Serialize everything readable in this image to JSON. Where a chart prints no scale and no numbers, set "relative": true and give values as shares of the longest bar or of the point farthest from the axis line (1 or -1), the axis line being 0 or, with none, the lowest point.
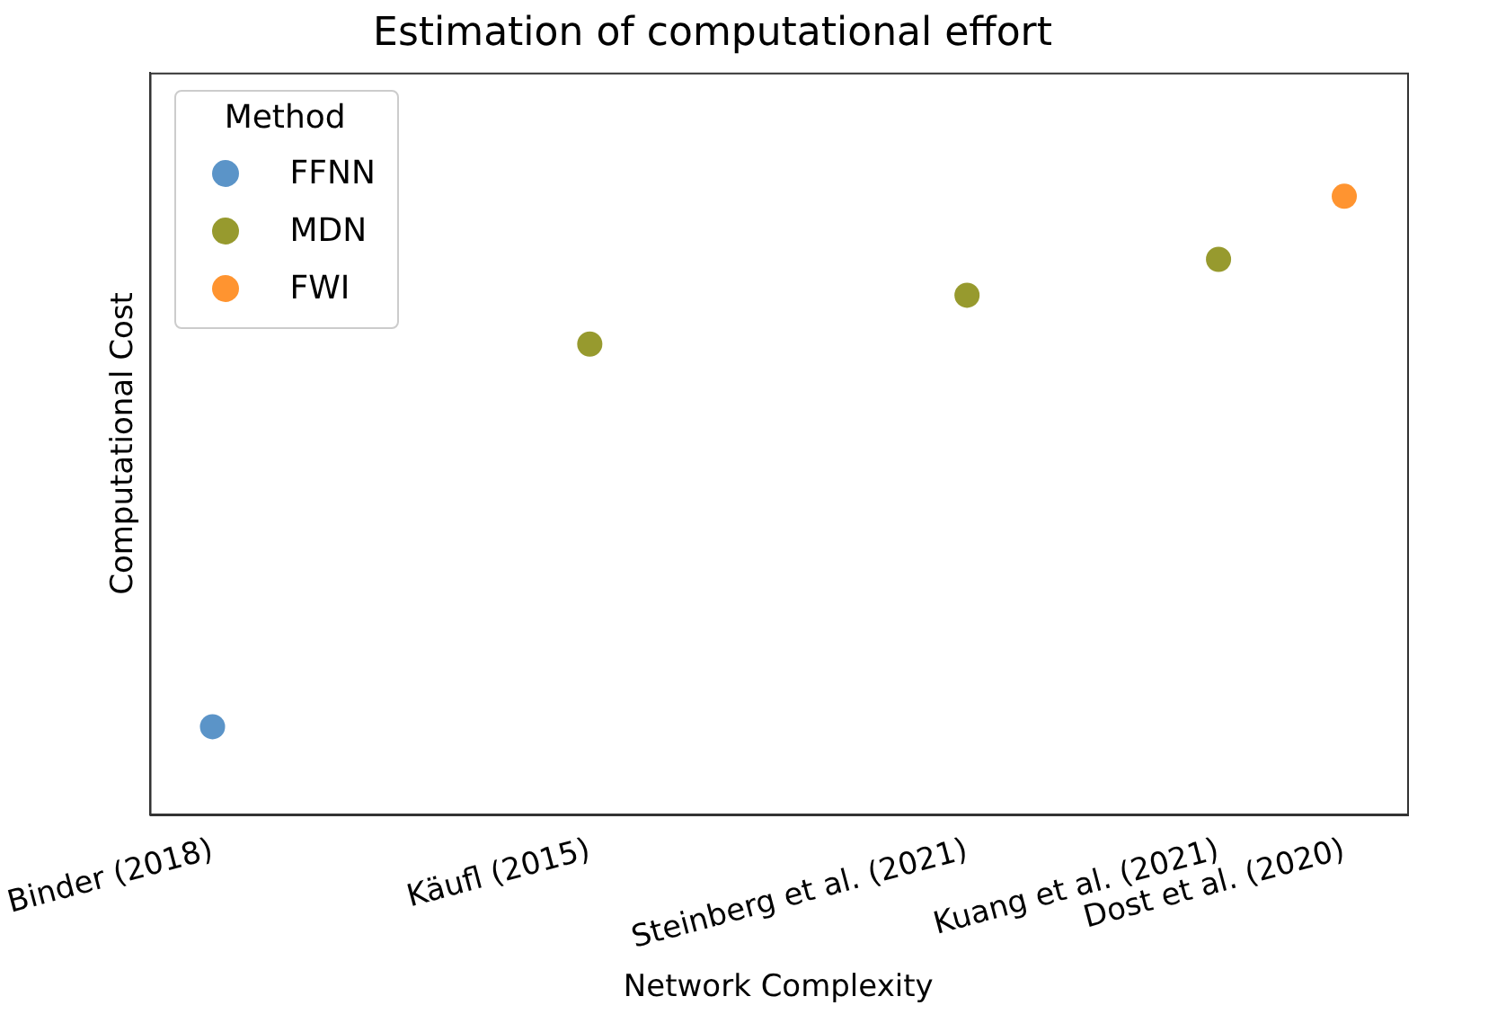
{
  "chart_data": {
    "type": "scatter",
    "title": "Estimation of computational effort",
    "xlabel": "Network Complexity",
    "ylabel": "Computational Cost",
    "legend_title": "Method",
    "legend": "top left",
    "marker": "circle",
    "relative": true,
    "grid": false,
    "categories": [
      "Binder (2018)",
      null,
      null,
      "Käufl (2015)",
      null,
      null,
      "Steinberg et al. (2021)",
      null,
      "Kuang et al. (2021)",
      "Dost et al. (2020)"
    ],
    "series": [
      {
        "name": "FFNN",
        "color": "#5b94c8",
        "values": [
          0.142,
          null,
          null,
          null,
          null,
          null,
          null,
          null,
          null,
          null
        ]
      },
      {
        "name": "MDN",
        "color": "#979a2e",
        "values": [
          null,
          null,
          null,
          0.761,
          null,
          null,
          0.84,
          null,
          0.898,
          null
        ]
      },
      {
        "name": "FWI",
        "color": "#ff9430",
        "values": [
          null,
          null,
          null,
          null,
          null,
          null,
          null,
          null,
          null,
          1
        ]
      }
    ]
  }
}
